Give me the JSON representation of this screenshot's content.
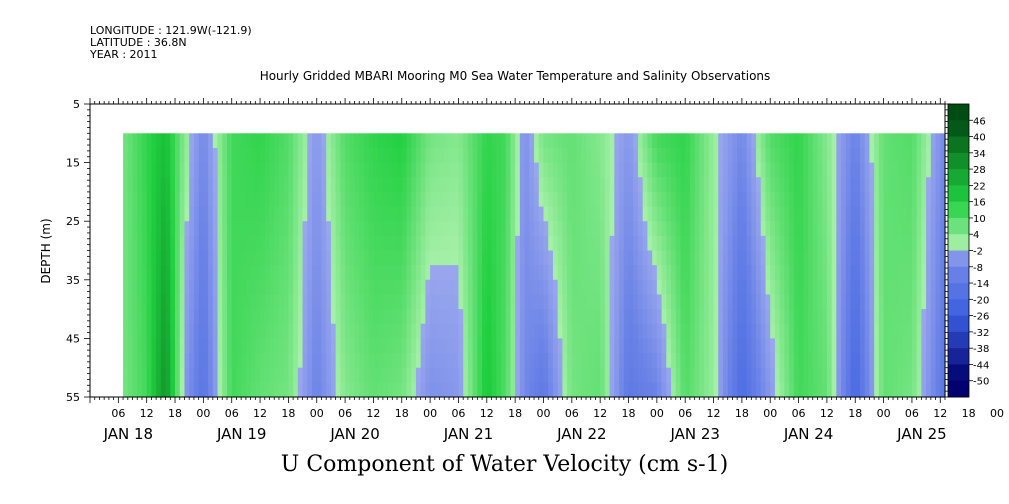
{
  "header": {
    "longitude": "LONGITUDE : 121.9W(-121.9)",
    "latitude": "LATITUDE : 36.8N",
    "year": "YEAR : 2011"
  },
  "title": "Hourly Gridded MBARI Mooring M0 Sea Water Temperature and Salinity Observations",
  "variable_title": "U Component of Water Velocity (cm s-1)",
  "chart_data": {
    "type": "heatmap",
    "title": "Hourly Gridded MBARI Mooring M0 Sea Water Temperature and Salinity Observations",
    "xlabel": "",
    "ylabel": "DEPTH (m)",
    "y_reversed": true,
    "ylim": [
      5,
      55
    ],
    "y_ticks": [
      5,
      15,
      25,
      35,
      45,
      55
    ],
    "xlim_hours": [
      0,
      181
    ],
    "hour_tick_labels": [
      "06",
      "12",
      "18",
      "00",
      "06",
      "12",
      "18",
      "00",
      "06",
      "12",
      "18",
      "00",
      "06",
      "12",
      "18",
      "00",
      "06",
      "12",
      "18",
      "00",
      "06",
      "12",
      "18",
      "00",
      "06",
      "12",
      "18",
      "00",
      "06",
      "12",
      "18",
      "00"
    ],
    "day_labels": [
      "JAN 18",
      "JAN 19",
      "JAN 20",
      "JAN 21",
      "JAN 22",
      "JAN 23",
      "JAN 24",
      "JAN 25"
    ],
    "data_depth_range": [
      10,
      55
    ],
    "colorbar_levels": [
      46,
      40,
      34,
      28,
      22,
      16,
      10,
      4,
      -2,
      -8,
      -14,
      -20,
      -26,
      -32,
      -38,
      -44,
      -50
    ],
    "colors": {
      "negative_strong": "#00006e",
      "negative_mid": "#3a5ee0",
      "negative_weak": "#9aa7ee",
      "positive_weak": "#a6f0a8",
      "positive_mid": "#20d040",
      "positive_strong": "#004d14"
    },
    "series": [
      {
        "name": "",
        "description_units": "cm s-1",
        "time_hours": [
          7,
          12,
          16,
          20,
          24,
          30,
          36,
          42,
          48,
          54,
          60,
          66,
          72,
          78,
          84,
          88,
          92,
          96,
          102,
          108,
          114,
          120,
          126,
          132,
          138,
          144,
          150,
          156,
          162,
          168,
          174,
          181
        ],
        "u_shallow": [
          6,
          14,
          20,
          4,
          -8,
          12,
          14,
          10,
          -4,
          10,
          14,
          16,
          6,
          4,
          14,
          12,
          -6,
          6,
          8,
          4,
          -4,
          12,
          14,
          2,
          -8,
          10,
          14,
          4,
          -10,
          8,
          10,
          -8
        ],
        "u_deep": [
          6,
          12,
          30,
          -4,
          -16,
          12,
          8,
          6,
          -10,
          4,
          8,
          6,
          -6,
          -4,
          18,
          10,
          -8,
          -14,
          6,
          8,
          -14,
          -10,
          10,
          2,
          -20,
          -4,
          12,
          8,
          -22,
          8,
          6,
          -16
        ]
      }
    ]
  }
}
